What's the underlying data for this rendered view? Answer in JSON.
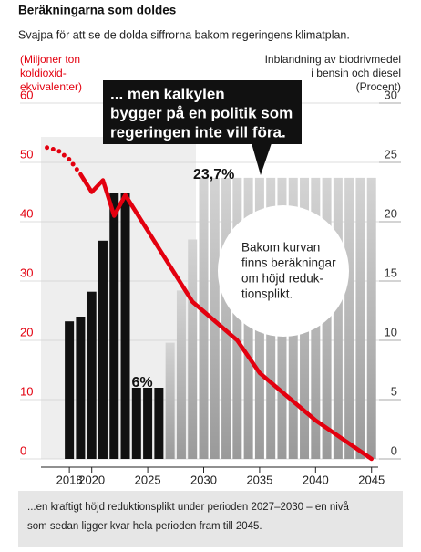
{
  "chart_data": {
    "type": "bar-line",
    "title": "Beräkningarna som doldes",
    "subtitle": "Svajpa för att se de dolda siffrorna bakom regeringens klimatplan.",
    "y_label": [
      "(Miljoner ton",
      "koldioxid-",
      "ekvivalenter)"
    ],
    "y2_label": [
      "Inblandning av biodrivmedel",
      "i bensin och diesel",
      "(Procent)"
    ],
    "xlim": [
      2014,
      2046
    ],
    "xticks": [
      2018,
      2020,
      2025,
      2030,
      2035,
      2040,
      2045
    ],
    "ylim": [
      0,
      60
    ],
    "yticks": [
      0,
      10,
      20,
      30,
      40,
      50,
      60
    ],
    "y_color": "#e3000f",
    "y2lim": [
      0,
      30
    ],
    "y2ticks": [
      0,
      5,
      10,
      15,
      20,
      25,
      30
    ],
    "grid": true,
    "series": [
      {
        "type": "bar",
        "axis": "y2",
        "color": "#111111",
        "x": [
          2018,
          2019,
          2020,
          2021,
          2022,
          2023,
          2024,
          2025,
          2026
        ],
        "values": [
          11.6,
          12,
          14.1,
          18.4,
          22.4,
          22.4,
          6,
          6,
          6
        ]
      },
      {
        "type": "bar",
        "axis": "y2",
        "color": "#c4c4c4",
        "x": [
          2027,
          2028,
          2029,
          2030,
          2031,
          2032,
          2033,
          2034,
          2035,
          2036,
          2037,
          2038,
          2039,
          2040,
          2041,
          2042,
          2043,
          2044,
          2045
        ],
        "values": [
          9.8,
          14.2,
          18.5,
          23.7,
          23.7,
          23.7,
          23.7,
          23.7,
          23.7,
          23.7,
          23.7,
          23.7,
          23.7,
          23.7,
          23.7,
          23.7,
          23.7,
          23.7,
          23.7
        ]
      },
      {
        "type": "line",
        "style": "dotted",
        "color": "#e3000f",
        "x": [
          2016,
          2017,
          2018,
          2019
        ],
        "values": [
          52.5,
          52,
          50.5,
          48
        ]
      },
      {
        "type": "line",
        "style": "solid",
        "color": "#e3000f",
        "x": [
          2019,
          2020,
          2021,
          2022,
          2023,
          2029,
          2033,
          2035,
          2040,
          2045
        ],
        "values": [
          48,
          45,
          47,
          41,
          44.5,
          26.5,
          20,
          14.5,
          6.5,
          0
        ]
      }
    ],
    "annotations": {
      "callout": [
        "... men kalkylen",
        "bygger på en politik som",
        "regeringen inte vill föra."
      ],
      "circle": [
        "Bakom kurvan",
        "finns beräkningar",
        "om höjd reduk-",
        "tionsplikt."
      ],
      "peak_label": "23,7%",
      "low_label": "6%"
    },
    "caption": [
      "...en kraftigt höjd reduktionsplikt under perioden 2027–2030 – en nivå",
      "som sedan ligger kvar hela perioden fram till 2045."
    ]
  }
}
